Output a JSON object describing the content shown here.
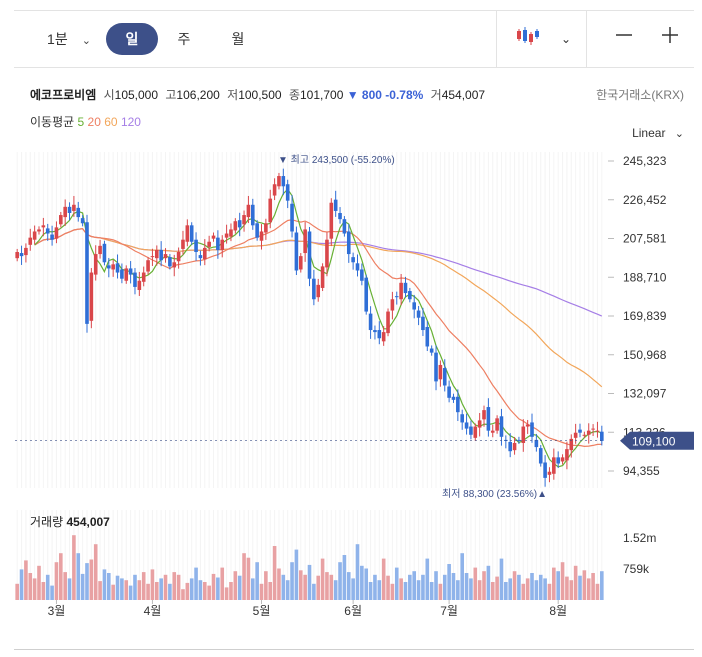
{
  "tabs": {
    "minute": "1분",
    "day": "일",
    "week": "주",
    "month": "월"
  },
  "icons": {
    "dropdown": "chevron-down-icon",
    "chart_type": "candlestick-icon",
    "zoom_out": "minus-icon",
    "zoom_in": "plus-icon"
  },
  "stock": {
    "name": "에코프로비엠",
    "open_label": "시",
    "open": "105,000",
    "high_label": "고",
    "high": "106,200",
    "low_label": "저",
    "low": "100,500",
    "close_label": "종",
    "close": "101,700",
    "change": "▼ 800 -0.78%",
    "volume_label": "거",
    "volume": "454,007",
    "exchange": "한국거래소(KRX)"
  },
  "ma": {
    "label": "이동평균",
    "p5": "5",
    "p20": "20",
    "p60": "60",
    "p120": "120"
  },
  "scale_label": "Linear",
  "colors": {
    "up": "#d9464a",
    "down": "#2f6ed6",
    "ma5": "#66b033",
    "ma20": "#ee7f62",
    "ma60": "#f2a65a",
    "ma120": "#a57ee6",
    "accent": "#3d5089",
    "volume_up": "#e8a1a3",
    "volume_down": "#8fb3ea"
  },
  "chart_data": {
    "type": "candlestick",
    "price_axis": {
      "ticks": [
        245323,
        226452,
        207581,
        188710,
        169839,
        150968,
        132097,
        113226,
        94355
      ],
      "tick_labels": [
        "245,323",
        "226,452",
        "207,581",
        "188,710",
        "169,839",
        "150,968",
        "132,097",
        "113,226",
        "94,355"
      ]
    },
    "x_axis": {
      "month_labels": [
        "3월",
        "4월",
        "5월",
        "6월",
        "7월",
        "8월"
      ],
      "month_start_index": [
        9,
        31,
        56,
        77,
        99,
        124
      ]
    },
    "high_annotation": "▼ 최고 243,500 (-55.20%)",
    "low_annotation": "최저 88,300 (23.56%)▲",
    "current_price": "109,100",
    "volume_title": "거래량",
    "volume_value": "454,007",
    "volume_axis": [
      "1.52m",
      "759k"
    ],
    "closes": [
      201000,
      199000,
      203000,
      208000,
      211000,
      212000,
      214000,
      210000,
      207000,
      213000,
      219000,
      223000,
      220000,
      224000,
      218000,
      215000,
      166000,
      191000,
      200000,
      204000,
      196000,
      193000,
      195000,
      191000,
      188000,
      193000,
      190000,
      184000,
      187000,
      191000,
      197000,
      199000,
      202000,
      197000,
      200000,
      194000,
      196000,
      201000,
      207000,
      214000,
      206000,
      201000,
      198000,
      203000,
      206000,
      209000,
      202000,
      207000,
      210000,
      212000,
      216000,
      213000,
      219000,
      224000,
      214000,
      208000,
      211000,
      215000,
      227000,
      234000,
      238000,
      233000,
      226000,
      211000,
      192000,
      199000,
      212000,
      188000,
      178000,
      185000,
      194000,
      207000,
      225000,
      221000,
      217000,
      210000,
      200000,
      196000,
      192000,
      187000,
      172000,
      163000,
      162000,
      159000,
      162000,
      172000,
      178000,
      179000,
      186000,
      181000,
      178000,
      173000,
      169000,
      163000,
      155000,
      152000,
      138000,
      146000,
      136000,
      130000,
      129000,
      123000,
      118000,
      115000,
      112000,
      116000,
      119000,
      124000,
      114000,
      114000,
      120000,
      111000,
      109000,
      104000,
      108000,
      109000,
      116000,
      117000,
      111000,
      106000,
      98000,
      91000,
      94000,
      101000,
      98000,
      101000,
      105000,
      110000,
      113000,
      113000,
      112000,
      114000,
      115000,
      114000,
      109000
    ],
    "volume_relative": [
      0.18,
      0.34,
      0.44,
      0.3,
      0.24,
      0.38,
      0.2,
      0.28,
      0.16,
      0.42,
      0.52,
      0.31,
      0.24,
      0.72,
      0.52,
      0.29,
      0.41,
      0.45,
      0.62,
      0.21,
      0.34,
      0.3,
      0.17,
      0.27,
      0.24,
      0.22,
      0.16,
      0.28,
      0.22,
      0.31,
      0.18,
      0.34,
      0.2,
      0.24,
      0.28,
      0.18,
      0.31,
      0.28,
      0.12,
      0.19,
      0.24,
      0.36,
      0.22,
      0.2,
      0.16,
      0.29,
      0.25,
      0.36,
      0.14,
      0.2,
      0.32,
      0.27,
      0.52,
      0.47,
      0.24,
      0.42,
      0.18,
      0.32,
      0.2,
      0.6,
      0.35,
      0.28,
      0.22,
      0.42,
      0.56,
      0.33,
      0.28,
      0.39,
      0.18,
      0.27,
      0.46,
      0.31,
      0.28,
      0.22,
      0.42,
      0.5,
      0.31,
      0.24,
      0.62,
      0.38,
      0.35,
      0.2,
      0.28,
      0.22,
      0.46,
      0.27,
      0.18,
      0.36,
      0.24,
      0.2,
      0.28,
      0.32,
      0.22,
      0.28,
      0.46,
      0.2,
      0.32,
      0.18,
      0.28,
      0.4,
      0.3,
      0.22,
      0.52,
      0.3,
      0.24,
      0.36,
      0.22,
      0.32,
      0.38,
      0.2,
      0.26,
      0.46,
      0.2,
      0.24,
      0.32,
      0.28,
      0.18,
      0.24,
      0.3,
      0.22,
      0.28,
      0.24,
      0.18,
      0.36,
      0.32,
      0.42,
      0.26,
      0.22,
      0.38,
      0.27,
      0.33,
      0.24,
      0.3,
      0.18,
      0.32
    ]
  }
}
